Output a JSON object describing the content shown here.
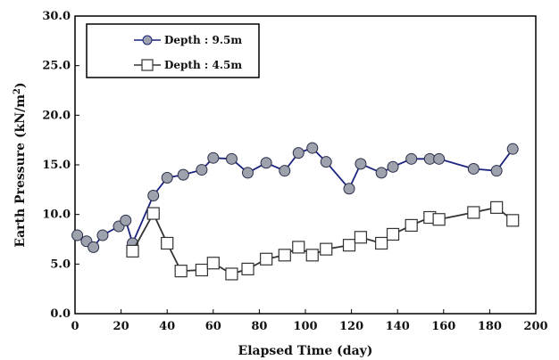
{
  "chart_data": {
    "type": "line",
    "xlabel": "Elapsed Time (day)",
    "ylabel": "Earth Pressure (kN/m",
    "ylabel_sup": "2",
    "ylabel_end": ")",
    "xlim": [
      0,
      200
    ],
    "ylim": [
      0,
      30
    ],
    "x_ticks": [
      "0",
      "20",
      "40",
      "60",
      "80",
      "100",
      "120",
      "140",
      "160",
      "180",
      "200"
    ],
    "y_ticks": [
      "0.0",
      "5.0",
      "10.0",
      "15.0",
      "20.0",
      "25.0",
      "30.0"
    ],
    "grid": false,
    "legend_position": "top-left",
    "series": [
      {
        "name": "Depth : 9.5m",
        "color": "#1a237e",
        "marker": "circle",
        "x": [
          1,
          5,
          8,
          12,
          19,
          22,
          25,
          34,
          40,
          47,
          55,
          60,
          68,
          75,
          83,
          91,
          97,
          103,
          109,
          119,
          124,
          133,
          138,
          146,
          154,
          158,
          173,
          183,
          190
        ],
        "y": [
          7.9,
          7.3,
          6.7,
          7.9,
          8.8,
          9.4,
          7.1,
          11.9,
          13.7,
          14.0,
          14.5,
          15.7,
          15.6,
          14.2,
          15.2,
          14.4,
          16.2,
          16.7,
          15.3,
          12.6,
          15.1,
          14.2,
          14.8,
          15.6,
          15.6,
          15.6,
          14.6,
          14.4,
          16.6
        ]
      },
      {
        "name": "Depth : 4.5m",
        "color": "#333333",
        "marker": "square",
        "x": [
          25,
          34,
          40,
          46,
          55,
          60,
          68,
          75,
          83,
          91,
          97,
          103,
          109,
          119,
          124,
          133,
          138,
          146,
          154,
          158,
          173,
          183,
          190
        ],
        "y": [
          6.3,
          10.1,
          7.1,
          4.3,
          4.4,
          5.1,
          4.0,
          4.5,
          5.5,
          5.9,
          6.7,
          5.9,
          6.5,
          6.9,
          7.7,
          7.1,
          8.0,
          8.9,
          9.7,
          9.5,
          10.2,
          10.7,
          9.4
        ]
      }
    ]
  }
}
